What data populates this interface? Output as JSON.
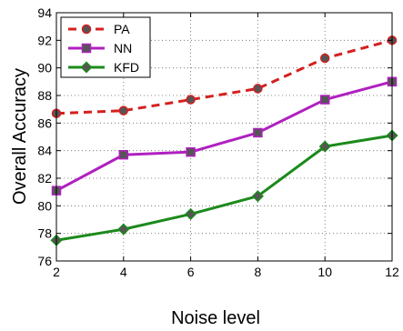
{
  "chart_data": {
    "type": "line",
    "xlabel": "Noise level",
    "ylabel": "Overall Accuracy",
    "x": [
      2,
      4,
      6,
      8,
      10,
      12
    ],
    "xlim": [
      2,
      12
    ],
    "ylim": [
      76,
      94
    ],
    "x_ticks": [
      2,
      4,
      6,
      8,
      10,
      12
    ],
    "y_ticks": [
      76,
      78,
      80,
      82,
      84,
      86,
      88,
      90,
      92,
      94
    ],
    "grid": true,
    "legend_position": "top-left",
    "series": [
      {
        "name": "PA",
        "values": [
          86.7,
          86.9,
          87.7,
          88.5,
          90.7,
          92.0
        ],
        "color": "#d42020",
        "line_style": "dashed",
        "marker": "circle"
      },
      {
        "name": "NN",
        "values": [
          81.1,
          83.7,
          83.9,
          85.3,
          87.7,
          89.0
        ],
        "color": "#b020c0",
        "line_style": "solid",
        "marker": "square"
      },
      {
        "name": "KFD",
        "values": [
          77.5,
          78.3,
          79.4,
          80.7,
          84.3,
          85.1
        ],
        "color": "#1c8a1c",
        "line_style": "solid",
        "marker": "diamond"
      }
    ]
  }
}
